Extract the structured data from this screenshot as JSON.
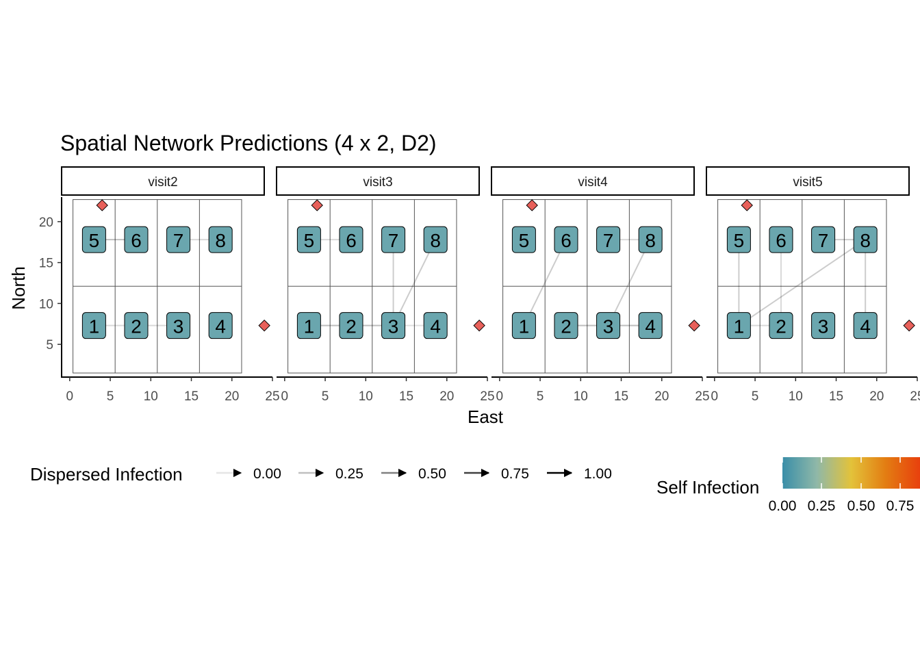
{
  "chart_data": {
    "type": "network",
    "title": "Spatial Network Predictions (4 x 2, D2)",
    "xlabel": "East",
    "ylabel": "North",
    "xlim": [
      -1,
      25
    ],
    "ylim": [
      1,
      23
    ],
    "x_ticks": [
      0,
      5,
      10,
      15,
      20,
      25
    ],
    "y_ticks": [
      5,
      10,
      15,
      20
    ],
    "x_tick_labels": [
      "0",
      "5",
      "10",
      "15",
      "20",
      "25"
    ],
    "y_tick_labels": [
      "5",
      "10",
      "15",
      "20"
    ],
    "grid": false,
    "plots": [
      {
        "label": "1",
        "x": 3,
        "y": 7.3
      },
      {
        "label": "2",
        "x": 8.2,
        "y": 7.3
      },
      {
        "label": "3",
        "x": 13.4,
        "y": 7.3
      },
      {
        "label": "4",
        "x": 18.6,
        "y": 7.3
      },
      {
        "label": "5",
        "x": 3,
        "y": 17.8
      },
      {
        "label": "6",
        "x": 8.2,
        "y": 17.8
      },
      {
        "label": "7",
        "x": 13.4,
        "y": 17.8
      },
      {
        "label": "8",
        "x": 18.6,
        "y": 17.8
      }
    ],
    "field_bounds": {
      "x": [
        0.4,
        21.2
      ],
      "y": [
        1.5,
        22.7
      ],
      "x_dividers": [
        5.6,
        10.8,
        16
      ],
      "y_divider": 12.1
    },
    "sources": [
      {
        "name": "source-north",
        "x": 4,
        "y": 22
      },
      {
        "name": "source-east",
        "x": 24,
        "y": 7.3
      }
    ],
    "facets": [
      {
        "label": "visit2",
        "edges": [
          {
            "from": "6",
            "to": "5",
            "value": 0.25
          },
          {
            "from": "8",
            "to": "7",
            "value": 0.15
          },
          {
            "from": "3",
            "to": "1",
            "value": 0.15
          }
        ]
      },
      {
        "label": "visit3",
        "edges": [
          {
            "from": "6",
            "to": "5",
            "value": 0.15
          },
          {
            "from": "3",
            "to": "7",
            "value": 0.2
          },
          {
            "from": "3",
            "to": "8",
            "value": 0.2
          },
          {
            "from": "3",
            "to": "1",
            "value": 0.25
          },
          {
            "from": "4",
            "to": "3",
            "value": 0.1
          }
        ]
      },
      {
        "label": "visit4",
        "edges": [
          {
            "from": "6",
            "to": "1",
            "value": 0.2
          },
          {
            "from": "7",
            "to": "8",
            "value": 0.15
          },
          {
            "from": "8",
            "to": "3",
            "value": 0.2
          },
          {
            "from": "2",
            "to": "4",
            "value": 0.25
          }
        ]
      },
      {
        "label": "visit5",
        "edges": [
          {
            "from": "5",
            "to": "1",
            "value": 0.2
          },
          {
            "from": "8",
            "to": "1",
            "value": 0.2
          },
          {
            "from": "8",
            "to": "7",
            "value": 0.2
          },
          {
            "from": "8",
            "to": "4",
            "value": 0.2
          },
          {
            "from": "6",
            "to": "2",
            "value": 0.15
          },
          {
            "from": "2",
            "to": "1",
            "value": 0.15
          }
        ]
      }
    ],
    "node_self_infection": 0.1,
    "legend_edges": {
      "title": "Dispersed Infection",
      "values": [
        0.0,
        0.25,
        0.5,
        0.75,
        1.0
      ],
      "labels": [
        "0.00",
        "0.25",
        "0.50",
        "0.75",
        "1.00"
      ]
    },
    "legend_color": {
      "title": "Self Infection",
      "labels": [
        "0.00",
        "0.25",
        "0.50",
        "0.75"
      ],
      "stops": [
        "#3a8ea8",
        "#8fb8a8",
        "#e3c23a",
        "#e37d12",
        "#e8400d"
      ]
    },
    "legend_position": "bottom",
    "colors": {
      "node_fill": "#6aa6ae",
      "source_fill": "#e8605a",
      "edge": "#000000"
    }
  }
}
